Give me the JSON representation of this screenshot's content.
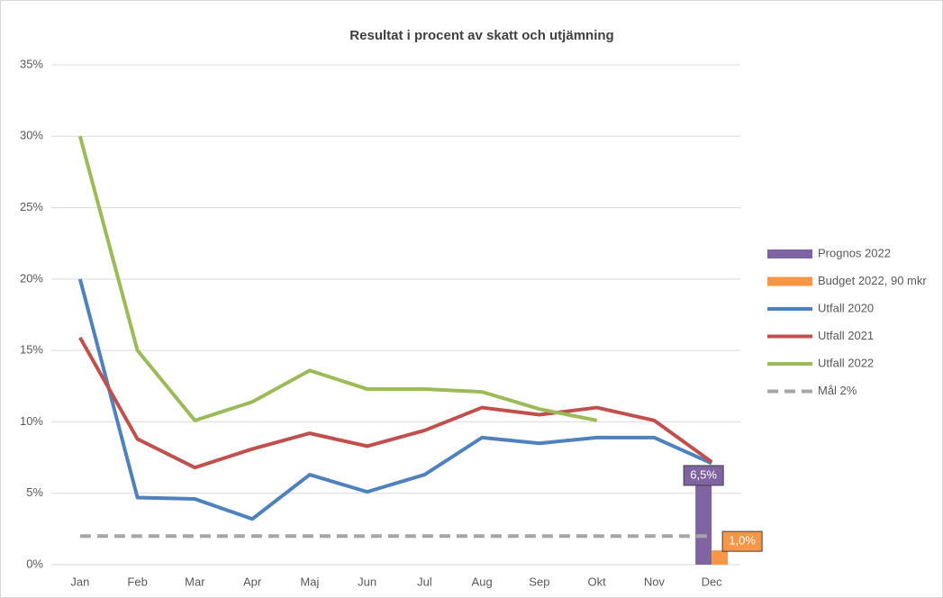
{
  "chart_data": {
    "type": "line",
    "title": "Resultat i procent av skatt och utjämning",
    "categories": [
      "Jan",
      "Feb",
      "Mar",
      "Apr",
      "Maj",
      "Jun",
      "Jul",
      "Aug",
      "Sep",
      "Okt",
      "Nov",
      "Dec"
    ],
    "ylim": [
      0,
      35
    ],
    "yticks": [
      {
        "value": 0,
        "label": "0%"
      },
      {
        "value": 5,
        "label": "5%"
      },
      {
        "value": 10,
        "label": "10%"
      },
      {
        "value": 15,
        "label": "15%"
      },
      {
        "value": 20,
        "label": "20%"
      },
      {
        "value": 25,
        "label": "25%"
      },
      {
        "value": 30,
        "label": "30%"
      },
      {
        "value": 35,
        "label": "35%"
      }
    ],
    "grid": true,
    "legend": "right",
    "series": [
      {
        "name": "Prognos 2022",
        "type": "bar",
        "color": "#8064a2",
        "values": [
          null,
          null,
          null,
          null,
          null,
          null,
          null,
          null,
          null,
          null,
          null,
          6.5
        ],
        "value_labels": [
          null,
          null,
          null,
          null,
          null,
          null,
          null,
          null,
          null,
          null,
          null,
          "6,5%"
        ]
      },
      {
        "name": "Budget 2022, 90 mkr",
        "type": "bar",
        "color": "#f79646",
        "values": [
          null,
          null,
          null,
          null,
          null,
          null,
          null,
          null,
          null,
          null,
          null,
          1.0
        ],
        "value_labels": [
          null,
          null,
          null,
          null,
          null,
          null,
          null,
          null,
          null,
          null,
          null,
          "1,0%"
        ]
      },
      {
        "name": "Utfall 2020",
        "type": "line",
        "color": "#4f81bd",
        "values": [
          20,
          4.7,
          4.6,
          3.2,
          6.3,
          5.1,
          6.3,
          8.9,
          8.5,
          8.9,
          8.9,
          7.1
        ]
      },
      {
        "name": "Utfall 2021",
        "type": "line",
        "color": "#c0504d",
        "values": [
          15.9,
          8.8,
          6.8,
          8.1,
          9.2,
          8.3,
          9.4,
          11.0,
          10.5,
          11.0,
          10.1,
          7.2
        ]
      },
      {
        "name": "Utfall 2022",
        "type": "line",
        "color": "#9bbb59",
        "values": [
          30,
          15,
          10.1,
          11.4,
          13.6,
          12.3,
          12.3,
          12.1,
          10.9,
          10.1,
          null,
          null
        ]
      },
      {
        "name": "Mål 2%",
        "type": "line",
        "dashed": true,
        "color": "#a6a6a6",
        "values": [
          2,
          2,
          2,
          2,
          2,
          2,
          2,
          2,
          2,
          2,
          2,
          2
        ]
      }
    ]
  }
}
